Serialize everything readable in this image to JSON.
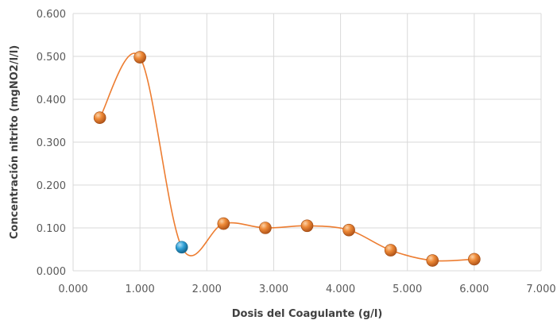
{
  "chart_data": {
    "type": "scatter",
    "title": "",
    "xlabel": "Dosis del Coagulante (g/l)",
    "ylabel": "Concentración nitrito (mgNO2/l/l)",
    "xlim": [
      0,
      7
    ],
    "ylim": [
      0,
      0.6
    ],
    "xticks": [
      "0.000",
      "1.000",
      "2.000",
      "3.000",
      "4.000",
      "5.000",
      "6.000",
      "7.000"
    ],
    "yticks": [
      "0.000",
      "0.100",
      "0.200",
      "0.300",
      "0.400",
      "0.500",
      "0.600"
    ],
    "grid": true,
    "smooth_line": true,
    "highlight_index": 2,
    "colors": {
      "line": "#ED7D31",
      "marker": "#E8822E",
      "marker_highlight": "#2E9FD6",
      "grid": "#D9D9D9"
    },
    "series": [
      {
        "x": [
          0.4,
          1.0,
          1.625,
          2.25,
          2.875,
          3.5,
          4.125,
          4.75,
          5.375,
          6.0
        ],
        "y": [
          0.357,
          0.498,
          0.055,
          0.11,
          0.1,
          0.105,
          0.095,
          0.048,
          0.024,
          0.027
        ]
      }
    ]
  }
}
